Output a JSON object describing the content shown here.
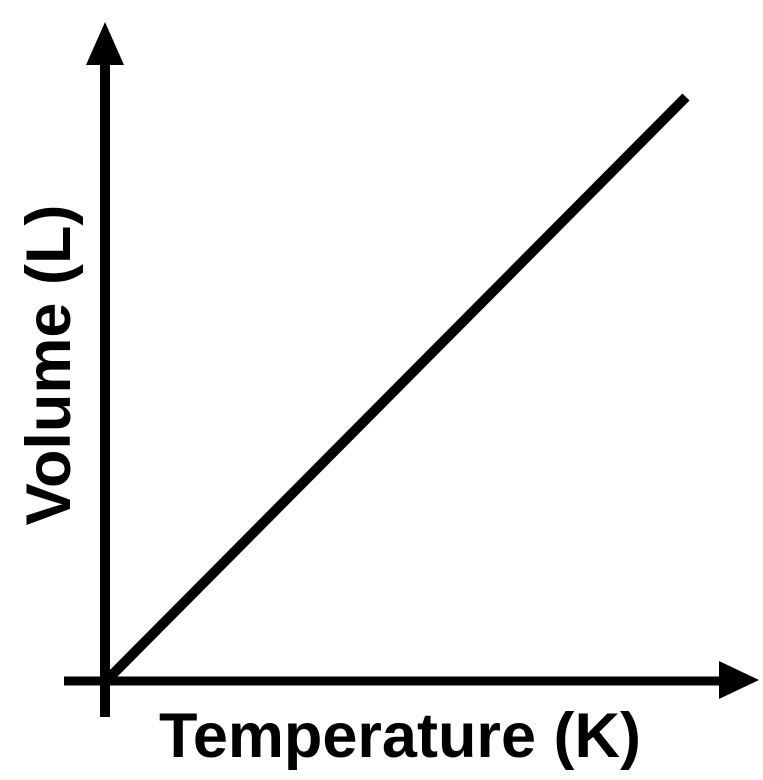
{
  "chart_data": {
    "type": "line",
    "title": "",
    "xlabel": "Temperature (K)",
    "ylabel": "Volume (L)",
    "x": [
      0,
      1
    ],
    "y": [
      0,
      1
    ],
    "xlim": [
      0,
      1
    ],
    "ylim": [
      0,
      1
    ],
    "grid": false,
    "legend": false,
    "x_ticks": [],
    "y_ticks": [],
    "relationship": "straight line through the origin with constant positive slope (volume directly proportional to temperature)",
    "line_color": "#000000",
    "axis_color": "#000000",
    "label_color": "#000000",
    "background_color": "#ffffff"
  }
}
